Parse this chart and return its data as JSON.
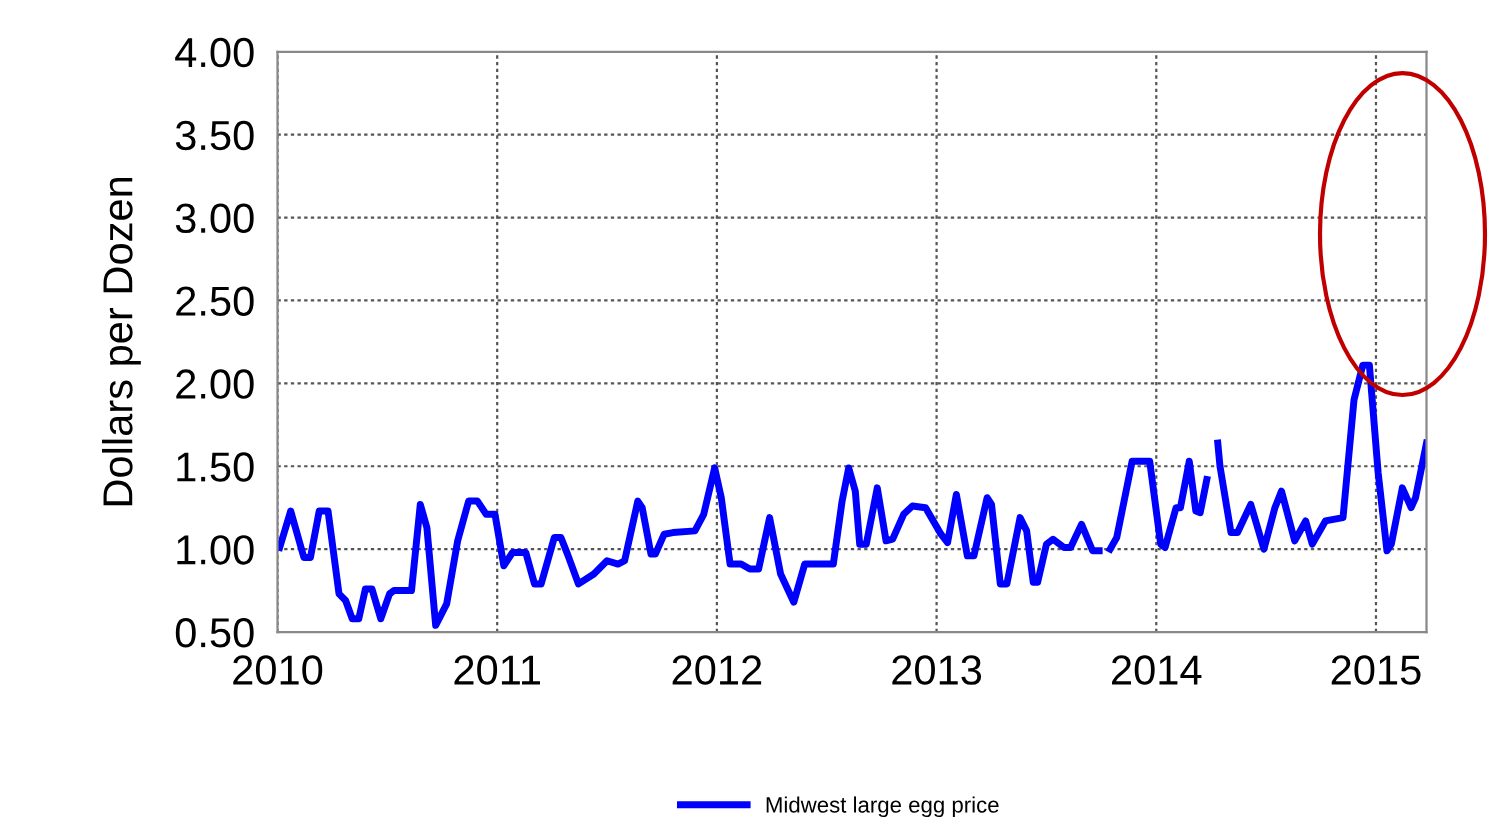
{
  "chart_data": {
    "type": "line",
    "ylabel": "Dollars per Dozen",
    "xlim": [
      2010,
      2015.23
    ],
    "xticks": [
      2010,
      2011,
      2012,
      2013,
      2014,
      2015
    ],
    "ylim": [
      0.5,
      4.0
    ],
    "yticks": [
      {
        "value": 0.5,
        "label": "0.50"
      },
      {
        "value": 1.0,
        "label": "1.00"
      },
      {
        "value": 1.5,
        "label": "1.50"
      },
      {
        "value": 2.0,
        "label": "2.00"
      },
      {
        "value": 2.5,
        "label": "2.50"
      },
      {
        "value": 3.0,
        "label": "3.00"
      },
      {
        "value": 3.5,
        "label": "3.50"
      },
      {
        "value": 4.0,
        "label": "4.00"
      }
    ],
    "grid": true,
    "legend": "bottom",
    "marker": "none",
    "line_style": "solid",
    "x": [
      2010.01,
      2010.06,
      2010.12,
      2010.15,
      2010.19,
      2010.23,
      2010.28,
      2010.31,
      2010.34,
      2010.37,
      2010.4,
      2010.43,
      2010.47,
      2010.51,
      2010.53,
      2010.61,
      2010.65,
      2010.68,
      2010.72,
      2010.77,
      2010.82,
      2010.87,
      2010.91,
      2010.95,
      2010.99,
      2011.03,
      2011.07,
      2011.13,
      2011.17,
      2011.2,
      2011.26,
      2011.29,
      2011.32,
      2011.37,
      2011.44,
      2011.5,
      2011.55,
      2011.58,
      2011.64,
      2011.66,
      2011.7,
      2011.72,
      2011.76,
      2011.8,
      2011.9,
      2011.94,
      2011.99,
      2012.02,
      2012.06,
      2012.11,
      2012.15,
      2012.19,
      2012.24,
      2012.29,
      2012.35,
      2012.4,
      2012.53,
      2012.57,
      2012.6,
      2012.63,
      2012.65,
      2012.68,
      2012.73,
      2012.77,
      2012.8,
      2012.85,
      2012.89,
      2012.95,
      2013.02,
      2013.05,
      2013.09,
      2013.14,
      2013.17,
      2013.23,
      2013.25,
      2013.29,
      2013.32,
      2013.38,
      2013.41,
      2013.44,
      2013.46,
      2013.5,
      2013.53,
      2013.58,
      2013.61,
      2013.66,
      2013.71,
      2013.74,
      2013.765,
      2013.79,
      2013.82,
      2013.89,
      2013.97,
      2014.02,
      2014.04,
      2014.09,
      2014.11,
      2014.15,
      2014.18,
      2014.2,
      2014.23,
      2014.255,
      2014.28,
      2014.29,
      2014.34,
      2014.37,
      2014.43,
      2014.49,
      2014.54,
      2014.57,
      2014.63,
      2014.68,
      2014.71,
      2014.77,
      2014.85,
      2014.9,
      2014.94,
      2014.97,
      2015.01,
      2015.05,
      2015.07,
      2015.12,
      2015.16,
      2015.18,
      2015.23
    ],
    "series": [
      {
        "name": "Midwest large egg price",
        "color": "#0000ff",
        "values": [
          1.01,
          1.23,
          0.95,
          0.95,
          1.23,
          1.23,
          0.73,
          0.69,
          0.58,
          0.58,
          0.76,
          0.76,
          0.58,
          0.73,
          0.75,
          0.75,
          1.27,
          1.13,
          0.54,
          0.67,
          1.05,
          1.29,
          1.29,
          1.21,
          1.21,
          0.9,
          0.98,
          0.98,
          0.79,
          0.79,
          1.07,
          1.07,
          0.97,
          0.79,
          0.85,
          0.93,
          0.91,
          0.93,
          1.29,
          1.25,
          0.97,
          0.97,
          1.09,
          1.1,
          1.11,
          1.21,
          1.49,
          1.31,
          0.91,
          0.91,
          0.88,
          0.88,
          1.19,
          0.85,
          0.68,
          0.91,
          0.91,
          1.29,
          1.49,
          1.35,
          1.03,
          1.03,
          1.37,
          1.05,
          1.06,
          1.21,
          1.26,
          1.25,
          1.09,
          1.04,
          1.33,
          0.96,
          0.96,
          1.31,
          1.27,
          0.79,
          0.79,
          1.19,
          1.11,
          0.8,
          0.8,
          1.03,
          1.06,
          1.01,
          1.01,
          1.15,
          0.99,
          0.99,
          null,
          1.0,
          1.07,
          1.53,
          1.53,
          1.03,
          1.01,
          1.25,
          1.25,
          1.53,
          1.23,
          1.22,
          1.42,
          null,
          1.64,
          1.5,
          1.1,
          1.1,
          1.27,
          1.0,
          1.25,
          1.35,
          1.05,
          1.17,
          1.03,
          1.17,
          1.19,
          1.9,
          2.11,
          2.11,
          1.46,
          0.99,
          1.03,
          1.37,
          1.25,
          1.31,
          1.64
        ]
      }
    ]
  }
}
